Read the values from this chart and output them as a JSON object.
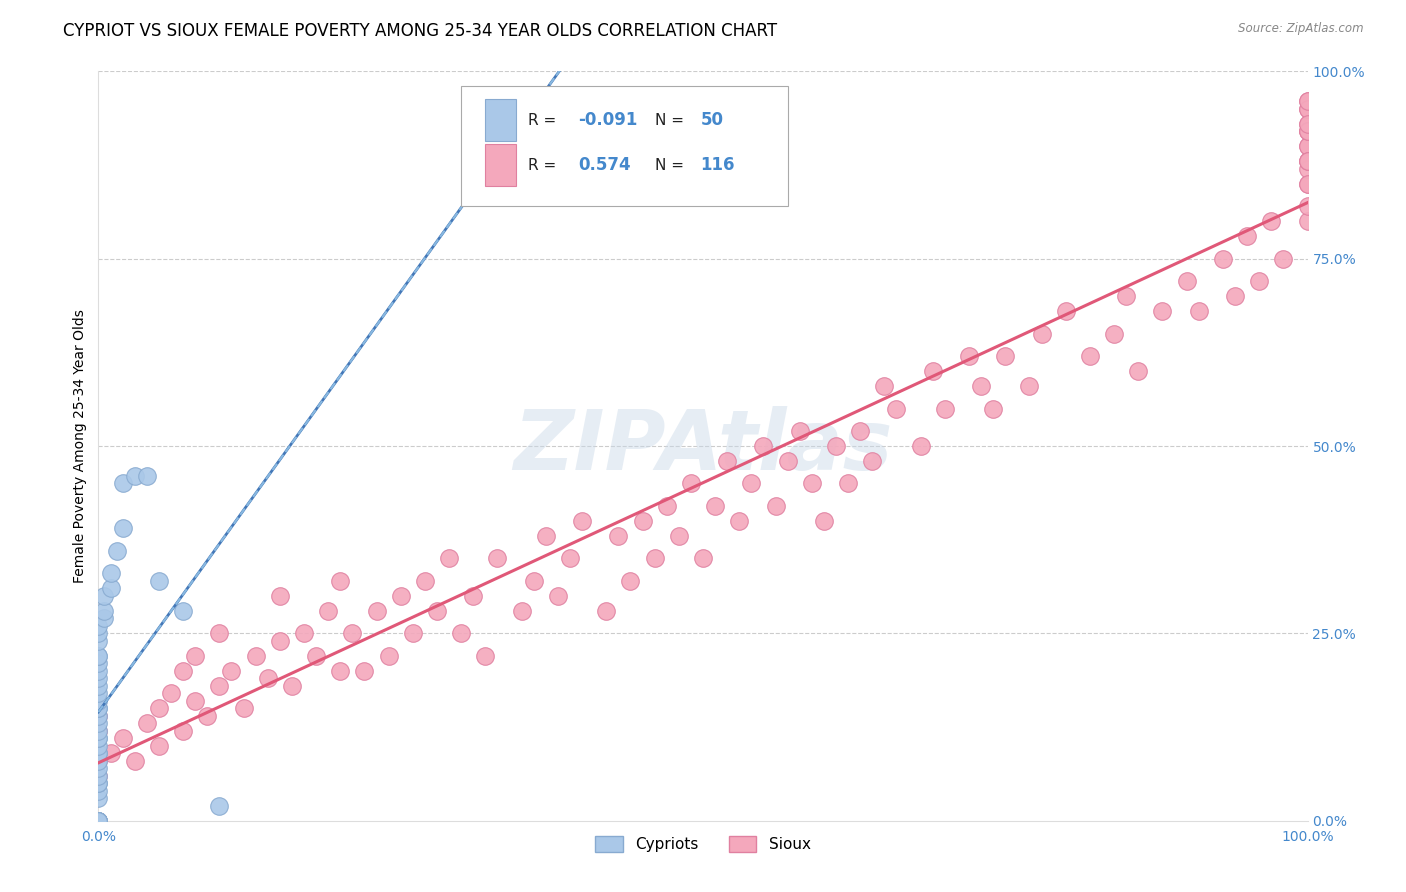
{
  "title": "CYPRIOT VS SIOUX FEMALE POVERTY AMONG 25-34 YEAR OLDS CORRELATION CHART",
  "source": "Source: ZipAtlas.com",
  "ylabel": "Female Poverty Among 25-34 Year Olds",
  "cypriot_x": [
    0.0,
    0.0,
    0.0,
    0.0,
    0.0,
    0.0,
    0.0,
    0.0,
    0.0,
    0.0,
    0.0,
    0.0,
    0.0,
    0.0,
    0.0,
    0.0,
    0.0,
    0.0,
    0.0,
    0.0,
    0.0,
    0.0,
    0.0,
    0.0,
    0.0,
    0.0,
    0.0,
    0.0,
    0.0,
    0.0,
    0.0,
    0.0,
    0.0,
    0.0,
    0.0,
    0.0,
    0.0,
    0.5,
    0.5,
    0.5,
    1.0,
    1.0,
    1.5,
    2.0,
    2.0,
    3.0,
    4.0,
    5.0,
    7.0,
    10.0
  ],
  "cypriot_y": [
    0.0,
    0.0,
    0.0,
    0.0,
    0.0,
    0.0,
    0.0,
    0.0,
    0.0,
    3.0,
    4.0,
    5.0,
    5.0,
    6.0,
    7.0,
    8.0,
    9.0,
    9.0,
    10.0,
    11.0,
    11.0,
    12.0,
    13.0,
    14.0,
    15.0,
    15.0,
    16.0,
    17.0,
    18.0,
    19.0,
    20.0,
    21.0,
    22.0,
    22.0,
    24.0,
    25.0,
    26.0,
    27.0,
    28.0,
    30.0,
    31.0,
    33.0,
    36.0,
    39.0,
    45.0,
    46.0,
    46.0,
    32.0,
    28.0,
    2.0
  ],
  "sioux_x": [
    0.0,
    0.0,
    0.0,
    0.0,
    1.0,
    2.0,
    3.0,
    4.0,
    5.0,
    5.0,
    6.0,
    7.0,
    7.0,
    8.0,
    8.0,
    9.0,
    10.0,
    10.0,
    11.0,
    12.0,
    13.0,
    14.0,
    15.0,
    15.0,
    16.0,
    17.0,
    18.0,
    19.0,
    20.0,
    20.0,
    21.0,
    22.0,
    23.0,
    24.0,
    25.0,
    26.0,
    27.0,
    28.0,
    29.0,
    30.0,
    31.0,
    32.0,
    33.0,
    35.0,
    36.0,
    37.0,
    38.0,
    39.0,
    40.0,
    42.0,
    43.0,
    44.0,
    45.0,
    46.0,
    47.0,
    48.0,
    49.0,
    50.0,
    51.0,
    52.0,
    53.0,
    54.0,
    55.0,
    56.0,
    57.0,
    58.0,
    59.0,
    60.0,
    61.0,
    62.0,
    63.0,
    64.0,
    65.0,
    66.0,
    68.0,
    69.0,
    70.0,
    72.0,
    73.0,
    74.0,
    75.0,
    77.0,
    78.0,
    80.0,
    82.0,
    84.0,
    85.0,
    86.0,
    88.0,
    90.0,
    91.0,
    93.0,
    94.0,
    95.0,
    96.0,
    97.0,
    98.0,
    100.0,
    100.0,
    100.0,
    100.0,
    100.0,
    100.0,
    100.0,
    100.0,
    100.0,
    100.0,
    100.0,
    100.0,
    100.0,
    100.0,
    100.0,
    100.0,
    100.0,
    100.0,
    100.0
  ],
  "sioux_y": [
    6.0,
    8.0,
    12.0,
    14.0,
    9.0,
    11.0,
    8.0,
    13.0,
    10.0,
    15.0,
    17.0,
    12.0,
    20.0,
    16.0,
    22.0,
    14.0,
    18.0,
    25.0,
    20.0,
    15.0,
    22.0,
    19.0,
    24.0,
    30.0,
    18.0,
    25.0,
    22.0,
    28.0,
    20.0,
    32.0,
    25.0,
    20.0,
    28.0,
    22.0,
    30.0,
    25.0,
    32.0,
    28.0,
    35.0,
    25.0,
    30.0,
    22.0,
    35.0,
    28.0,
    32.0,
    38.0,
    30.0,
    35.0,
    40.0,
    28.0,
    38.0,
    32.0,
    40.0,
    35.0,
    42.0,
    38.0,
    45.0,
    35.0,
    42.0,
    48.0,
    40.0,
    45.0,
    50.0,
    42.0,
    48.0,
    52.0,
    45.0,
    40.0,
    50.0,
    45.0,
    52.0,
    48.0,
    58.0,
    55.0,
    50.0,
    60.0,
    55.0,
    62.0,
    58.0,
    55.0,
    62.0,
    58.0,
    65.0,
    68.0,
    62.0,
    65.0,
    70.0,
    60.0,
    68.0,
    72.0,
    68.0,
    75.0,
    70.0,
    78.0,
    72.0,
    80.0,
    75.0,
    85.0,
    90.0,
    80.0,
    88.0,
    93.0,
    87.0,
    92.0,
    95.0,
    82.0,
    90.0,
    88.0,
    96.0,
    92.0,
    85.0,
    95.0,
    88.0,
    92.0,
    96.0,
    93.0
  ],
  "xlim": [
    0,
    100
  ],
  "ylim": [
    0,
    100
  ],
  "xtick_positions": [
    0,
    100
  ],
  "xticklabels": [
    "0.0%",
    "100.0%"
  ],
  "ytick_positions": [
    0,
    25,
    50,
    75,
    100
  ],
  "yticklabels_right": [
    "0.0%",
    "25.0%",
    "50.0%",
    "75.0%",
    "100.0%"
  ],
  "grid_color": "#cccccc",
  "background_color": "#ffffff",
  "cypriot_dot_color": "#aac8e8",
  "cypriot_dot_edge": "#88aad0",
  "sioux_dot_color": "#f4a8bc",
  "sioux_dot_edge": "#e080a0",
  "cypriot_line_color_solid": "#4478b8",
  "cypriot_line_color_dashed": "#88b8e0",
  "sioux_line_color": "#e05878",
  "watermark_text": "ZIPAtlas",
  "watermark_color": "#c8d8e8",
  "title_fontsize": 12,
  "axis_label_fontsize": 10,
  "tick_fontsize": 10,
  "legend_R_cy": "-0.091",
  "legend_N_cy": "50",
  "legend_R_si": "0.574",
  "legend_N_si": "116",
  "legend_text_color_black": "#222222",
  "legend_text_color_blue": "#4488cc",
  "legend_cy_face": "#aac8e8",
  "legend_cy_edge": "#88aad0",
  "legend_si_face": "#f4a8bc",
  "legend_si_edge": "#e080a0"
}
